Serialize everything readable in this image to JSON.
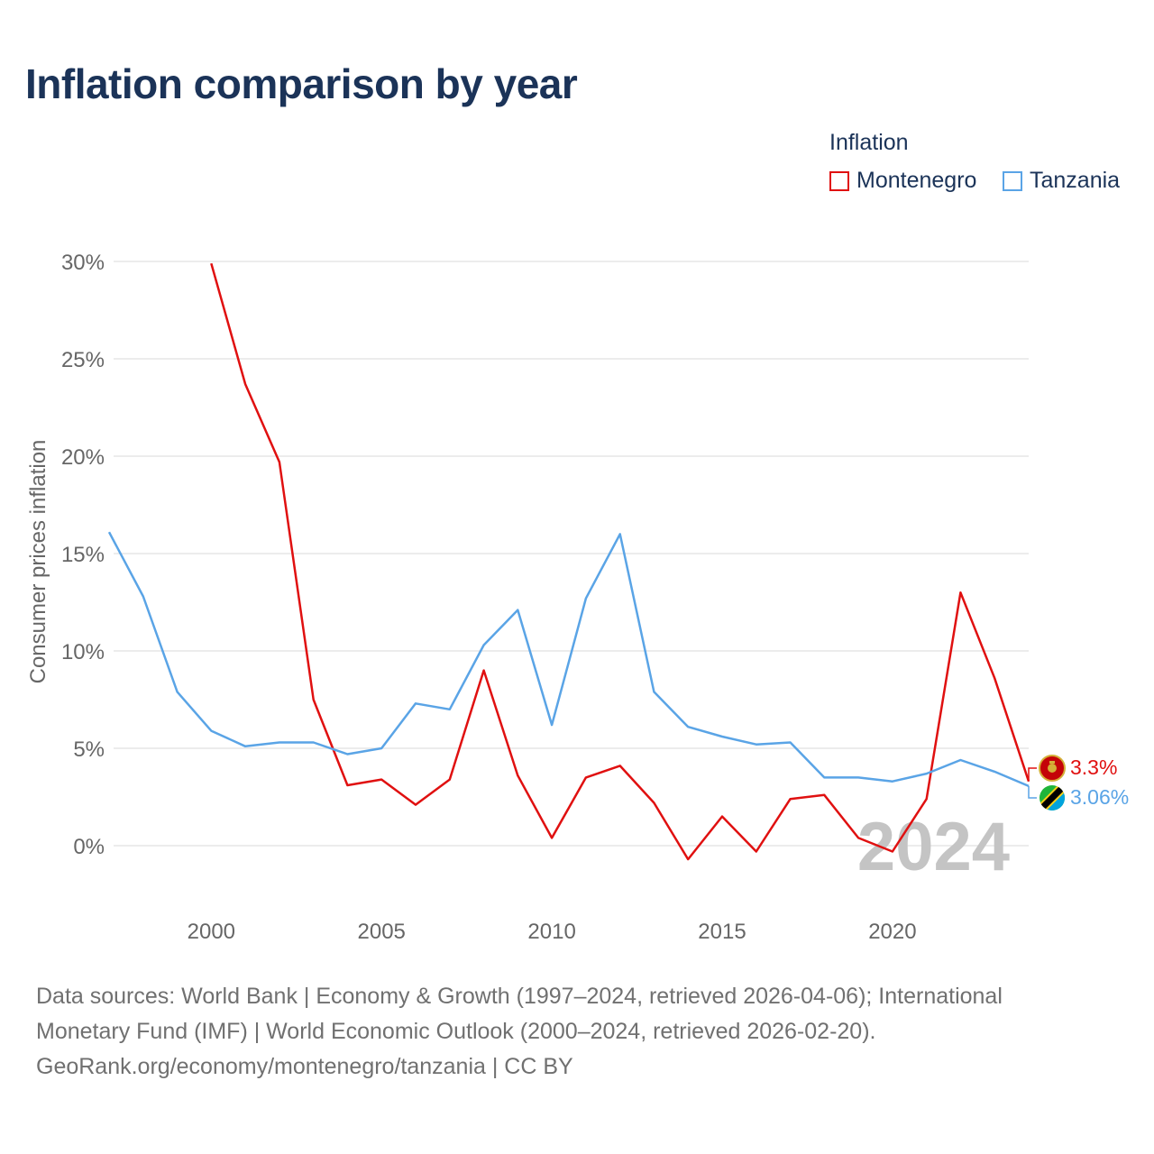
{
  "chart_data": {
    "type": "line",
    "title": "Inflation comparison by year",
    "legend_title": "Inflation",
    "ylabel": "Consumer prices inflation",
    "xlabel": "",
    "xlim": [
      1997,
      2024
    ],
    "ylim": [
      -3,
      30
    ],
    "y_ticks": [
      0,
      5,
      10,
      15,
      20,
      25,
      30
    ],
    "y_tick_labels": [
      "0%",
      "5%",
      "10%",
      "15%",
      "20%",
      "25%",
      "30%"
    ],
    "x_ticks": [
      2000,
      2005,
      2010,
      2015,
      2020
    ],
    "x_tick_labels": [
      "2000",
      "2005",
      "2010",
      "2015",
      "2020"
    ],
    "year_watermark": "2024",
    "series": [
      {
        "name": "Montenegro",
        "color": "#e01010",
        "end_label": "3.3%",
        "points": [
          [
            2000,
            29.9
          ],
          [
            2001,
            23.7
          ],
          [
            2002,
            19.7
          ],
          [
            2003,
            7.5
          ],
          [
            2004,
            3.1
          ],
          [
            2005,
            3.4
          ],
          [
            2006,
            2.1
          ],
          [
            2007,
            3.4
          ],
          [
            2008,
            9.0
          ],
          [
            2009,
            3.6
          ],
          [
            2010,
            0.4
          ],
          [
            2011,
            3.5
          ],
          [
            2012,
            4.1
          ],
          [
            2013,
            2.2
          ],
          [
            2014,
            -0.7
          ],
          [
            2015,
            1.5
          ],
          [
            2016,
            -0.3
          ],
          [
            2017,
            2.4
          ],
          [
            2018,
            2.6
          ],
          [
            2019,
            0.4
          ],
          [
            2020,
            -0.3
          ],
          [
            2021,
            2.4
          ],
          [
            2022,
            13.0
          ],
          [
            2023,
            8.6
          ],
          [
            2024,
            3.3
          ]
        ]
      },
      {
        "name": "Tanzania",
        "color": "#5aa4e6",
        "end_label": "3.06%",
        "points": [
          [
            1997,
            16.1
          ],
          [
            1998,
            12.8
          ],
          [
            1999,
            7.9
          ],
          [
            2000,
            5.9
          ],
          [
            2001,
            5.1
          ],
          [
            2002,
            5.3
          ],
          [
            2003,
            5.3
          ],
          [
            2004,
            4.7
          ],
          [
            2005,
            5.0
          ],
          [
            2006,
            7.3
          ],
          [
            2007,
            7.0
          ],
          [
            2008,
            10.3
          ],
          [
            2009,
            12.1
          ],
          [
            2010,
            6.2
          ],
          [
            2011,
            12.7
          ],
          [
            2012,
            16.0
          ],
          [
            2013,
            7.9
          ],
          [
            2014,
            6.1
          ],
          [
            2015,
            5.6
          ],
          [
            2016,
            5.2
          ],
          [
            2017,
            5.3
          ],
          [
            2018,
            3.5
          ],
          [
            2019,
            3.5
          ],
          [
            2020,
            3.3
          ],
          [
            2021,
            3.7
          ],
          [
            2022,
            4.4
          ],
          [
            2023,
            3.8
          ],
          [
            2024,
            3.06
          ]
        ]
      }
    ]
  },
  "footer": {
    "line1": "Data sources: World Bank | Economy & Growth (1997–2024, retrieved 2026-04-06); International",
    "line2": "Monetary Fund (IMF) | World Economic Outlook (2000–2024, retrieved 2026-02-20).",
    "line3": "GeoRank.org/economy/montenegro/tanzania | CC BY"
  }
}
